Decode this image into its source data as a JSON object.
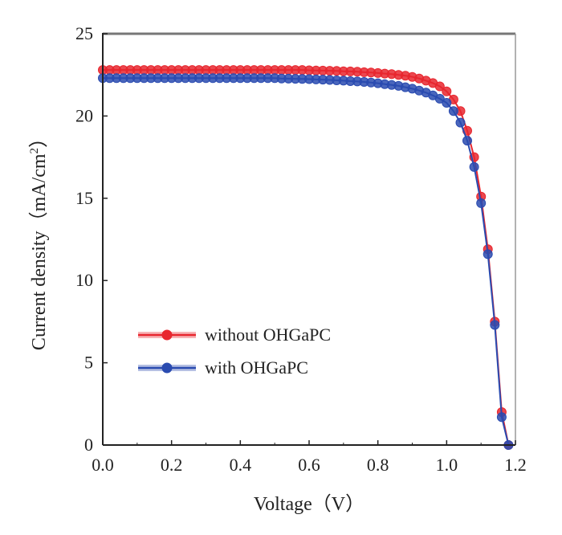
{
  "chart_data": {
    "type": "line",
    "xlabel": "Voltage（V）",
    "ylabel_main": "Current density（mA/cm",
    "ylabel_sup": "2",
    "ylabel_end": "）",
    "xlim": [
      0.0,
      1.2
    ],
    "ylim": [
      0,
      25
    ],
    "x_ticks": [
      "0.0",
      "0.2",
      "0.4",
      "0.6",
      "0.8",
      "1.0",
      "1.2"
    ],
    "y_ticks": [
      "0",
      "5",
      "10",
      "15",
      "20",
      "25"
    ],
    "grid": false,
    "legend_position": "lower-left",
    "series": [
      {
        "name": "without OHGaPC",
        "color": "#e8272f",
        "x": [
          0.0,
          0.02,
          0.04,
          0.06,
          0.08,
          0.1,
          0.12,
          0.14,
          0.16,
          0.18,
          0.2,
          0.22,
          0.24,
          0.26,
          0.28,
          0.3,
          0.32,
          0.34,
          0.36,
          0.38,
          0.4,
          0.42,
          0.44,
          0.46,
          0.48,
          0.5,
          0.52,
          0.54,
          0.56,
          0.58,
          0.6,
          0.62,
          0.64,
          0.66,
          0.68,
          0.7,
          0.72,
          0.74,
          0.76,
          0.78,
          0.8,
          0.82,
          0.84,
          0.86,
          0.88,
          0.9,
          0.92,
          0.94,
          0.96,
          0.98,
          1.0,
          1.02,
          1.04,
          1.06,
          1.08,
          1.1,
          1.12,
          1.14,
          1.16,
          1.18
        ],
        "y": [
          22.8,
          22.8,
          22.8,
          22.8,
          22.8,
          22.8,
          22.8,
          22.8,
          22.8,
          22.8,
          22.8,
          22.8,
          22.8,
          22.8,
          22.8,
          22.8,
          22.8,
          22.8,
          22.8,
          22.8,
          22.8,
          22.8,
          22.8,
          22.8,
          22.8,
          22.8,
          22.8,
          22.8,
          22.8,
          22.8,
          22.78,
          22.77,
          22.76,
          22.75,
          22.74,
          22.72,
          22.71,
          22.69,
          22.66,
          22.64,
          22.61,
          22.58,
          22.55,
          22.5,
          22.45,
          22.38,
          22.28,
          22.15,
          22.0,
          21.8,
          21.5,
          21.0,
          20.3,
          19.1,
          17.5,
          15.1,
          11.9,
          7.5,
          2.0,
          0.0
        ]
      },
      {
        "name": "with OHGaPC",
        "color": "#2a4bb0",
        "x": [
          0.0,
          0.02,
          0.04,
          0.06,
          0.08,
          0.1,
          0.12,
          0.14,
          0.16,
          0.18,
          0.2,
          0.22,
          0.24,
          0.26,
          0.28,
          0.3,
          0.32,
          0.34,
          0.36,
          0.38,
          0.4,
          0.42,
          0.44,
          0.46,
          0.48,
          0.5,
          0.52,
          0.54,
          0.56,
          0.58,
          0.6,
          0.62,
          0.64,
          0.66,
          0.68,
          0.7,
          0.72,
          0.74,
          0.76,
          0.78,
          0.8,
          0.82,
          0.84,
          0.86,
          0.88,
          0.9,
          0.92,
          0.94,
          0.96,
          0.98,
          1.0,
          1.02,
          1.04,
          1.06,
          1.08,
          1.1,
          1.12,
          1.14,
          1.16,
          1.18
        ],
        "y": [
          22.3,
          22.3,
          22.3,
          22.3,
          22.3,
          22.3,
          22.3,
          22.3,
          22.3,
          22.3,
          22.3,
          22.3,
          22.3,
          22.3,
          22.3,
          22.3,
          22.3,
          22.3,
          22.3,
          22.3,
          22.3,
          22.3,
          22.3,
          22.3,
          22.3,
          22.3,
          22.28,
          22.27,
          22.26,
          22.25,
          22.24,
          22.22,
          22.21,
          22.19,
          22.17,
          22.15,
          22.12,
          22.1,
          22.07,
          22.03,
          21.99,
          21.94,
          21.89,
          21.83,
          21.75,
          21.66,
          21.55,
          21.42,
          21.25,
          21.05,
          20.8,
          20.3,
          19.6,
          18.5,
          16.9,
          14.7,
          11.6,
          7.3,
          1.7,
          0.0
        ]
      }
    ]
  }
}
